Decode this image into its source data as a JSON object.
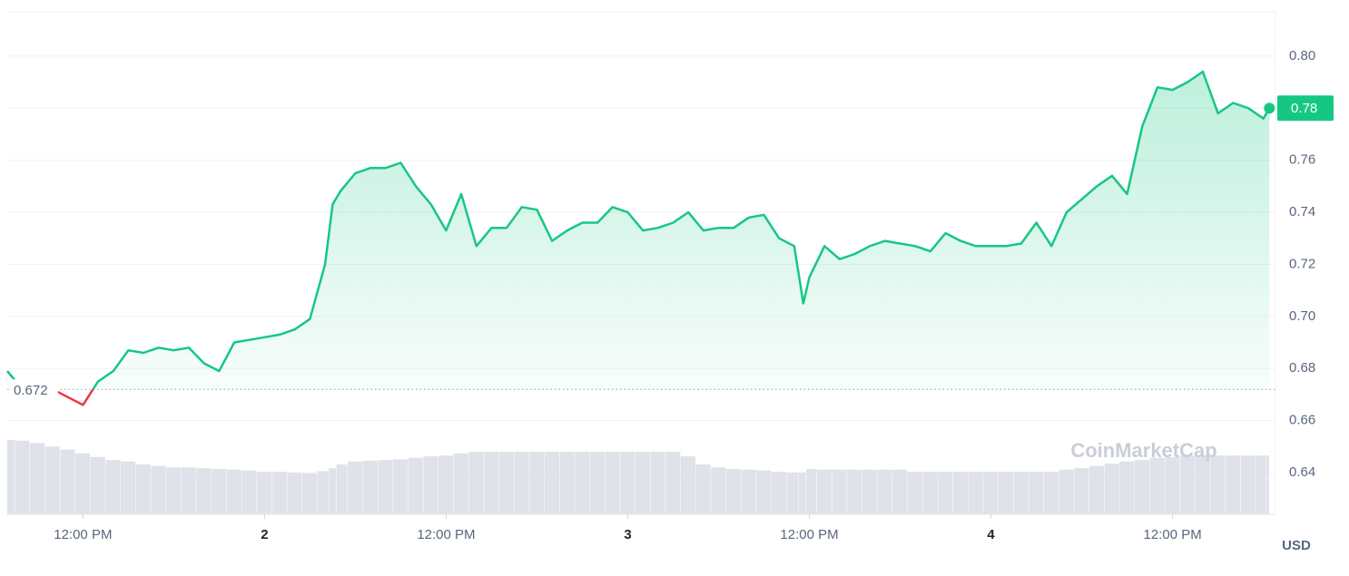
{
  "chart_data": {
    "type": "line",
    "x": [
      7,
      8,
      9,
      10,
      11,
      12,
      13,
      14,
      15,
      16,
      17,
      18,
      19,
      20,
      21,
      22,
      23,
      24,
      25,
      26,
      27,
      28,
      28.5,
      29,
      30,
      31,
      32,
      33,
      34,
      35,
      36,
      37,
      38,
      39,
      40,
      41,
      42,
      43,
      44,
      45,
      46,
      47,
      48,
      49,
      50,
      51,
      52,
      53,
      54,
      55,
      56,
      57,
      58,
      59,
      59.6,
      60,
      61,
      62,
      63,
      64,
      65,
      66,
      67,
      68,
      69,
      70,
      71,
      72,
      73,
      74,
      75,
      76,
      77,
      78,
      79,
      80,
      81,
      82,
      83,
      84,
      85,
      86,
      87,
      88,
      89,
      90,
      90.4
    ],
    "values": [
      0.679,
      0.672,
      0.671,
      0.672,
      0.669,
      0.666,
      0.675,
      0.679,
      0.687,
      0.686,
      0.688,
      0.687,
      0.688,
      0.682,
      0.679,
      0.69,
      0.691,
      0.692,
      0.693,
      0.695,
      0.699,
      0.72,
      0.743,
      0.748,
      0.755,
      0.757,
      0.757,
      0.759,
      0.75,
      0.743,
      0.733,
      0.747,
      0.727,
      0.734,
      0.734,
      0.742,
      0.741,
      0.729,
      0.733,
      0.736,
      0.736,
      0.742,
      0.74,
      0.733,
      0.734,
      0.736,
      0.74,
      0.733,
      0.734,
      0.734,
      0.738,
      0.739,
      0.73,
      0.727,
      0.705,
      0.715,
      0.727,
      0.722,
      0.724,
      0.727,
      0.729,
      0.728,
      0.727,
      0.725,
      0.732,
      0.729,
      0.727,
      0.727,
      0.727,
      0.728,
      0.736,
      0.727,
      0.74,
      0.745,
      0.75,
      0.754,
      0.747,
      0.773,
      0.788,
      0.787,
      0.79,
      0.794,
      0.778,
      0.782,
      0.78,
      0.776,
      0.78
    ],
    "volume": [
      100,
      99,
      96,
      91,
      87,
      82,
      77,
      73,
      71,
      67,
      65,
      63,
      63,
      62,
      61,
      60,
      59,
      57,
      57,
      56,
      55,
      58,
      62,
      67,
      71,
      72,
      73,
      74,
      76,
      78,
      79,
      82,
      84,
      84,
      84,
      84,
      84,
      84,
      84,
      84,
      84,
      84,
      84,
      84,
      84,
      84,
      78,
      67,
      63,
      61,
      60,
      59,
      57,
      56,
      56,
      61,
      60,
      60,
      60,
      60,
      60,
      60,
      57,
      57,
      57,
      57,
      57,
      57,
      57,
      57,
      57,
      57,
      60,
      62,
      65,
      68,
      71,
      73,
      76,
      77,
      79,
      79,
      79,
      79,
      79,
      79,
      79
    ],
    "volume_lim": [
      0,
      100
    ],
    "color": "#16c784",
    "down_color": "#ea3943",
    "baseline": 0.672,
    "price_label": "0.78",
    "xlim": [
      7,
      90.8
    ],
    "xticks": [
      {
        "value": 12,
        "label": "12:00 PM"
      },
      {
        "value": 24,
        "label": "2"
      },
      {
        "value": 36,
        "label": "12:00 PM"
      },
      {
        "value": 48,
        "label": "3"
      },
      {
        "value": 60,
        "label": "12:00 PM"
      },
      {
        "value": 72,
        "label": "4"
      },
      {
        "value": 84,
        "label": "12:00 PM"
      }
    ],
    "ylim": [
      0.624,
      0.817
    ],
    "yticks": [
      0.64,
      0.66,
      0.68,
      {
        "value": 0.7,
        "label": "0.70"
      },
      0.72,
      0.74,
      0.76,
      0.78,
      {
        "value": 0.8,
        "label": "0.80"
      }
    ],
    "y_unit": "USD",
    "watermark": "CoinMarketCap",
    "grid": true
  }
}
